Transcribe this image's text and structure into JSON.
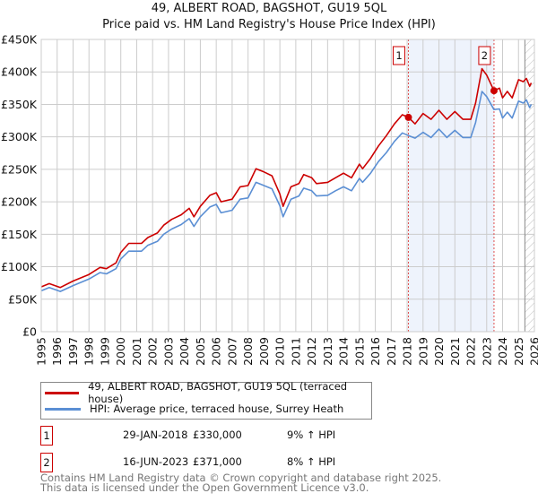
{
  "chart_data": {
    "type": "line",
    "title": "49, ALBERT ROAD, BAGSHOT, GU19 5QL",
    "subtitle": "Price paid vs. HM Land Registry's House Price Index (HPI)",
    "xlim": [
      1995,
      2026
    ],
    "ylim": [
      0,
      450000
    ],
    "y_ticks": [
      0,
      50000,
      100000,
      150000,
      200000,
      250000,
      300000,
      350000,
      400000,
      450000
    ],
    "y_tick_labels": [
      "£0",
      "£50K",
      "£100K",
      "£150K",
      "£200K",
      "£250K",
      "£300K",
      "£350K",
      "£400K",
      "£450K"
    ],
    "x_ticks": [
      1995,
      1996,
      1997,
      1998,
      1999,
      2000,
      2001,
      2002,
      2003,
      2004,
      2005,
      2006,
      2007,
      2008,
      2009,
      2010,
      2011,
      2012,
      2013,
      2014,
      2015,
      2016,
      2017,
      2018,
      2019,
      2020,
      2021,
      2022,
      2023,
      2024,
      2025,
      2026
    ],
    "grid": true,
    "forecast_hatch_from": 2025.4,
    "shaded_between_sales": [
      2018.08,
      2023.46
    ],
    "series": [
      {
        "name": "49, ALBERT ROAD, BAGSHOT, GU19 5QL (terraced house)",
        "color": "#cc0000",
        "x": [
          1995.0,
          1995.5,
          1996.2,
          1997.0,
          1998.0,
          1998.7,
          1999.1,
          1999.7,
          2000.0,
          2000.5,
          2001.3,
          2001.7,
          2002.3,
          2002.7,
          2003.2,
          2003.8,
          2004.3,
          2004.6,
          2005.0,
          2005.6,
          2006.0,
          2006.3,
          2007.0,
          2007.5,
          2008.0,
          2008.5,
          2009.0,
          2009.5,
          2010.0,
          2010.2,
          2010.7,
          2011.2,
          2011.5,
          2012.0,
          2012.3,
          2013.0,
          2013.5,
          2014.0,
          2014.5,
          2015.0,
          2015.2,
          2015.7,
          2016.2,
          2016.7,
          2017.2,
          2017.7,
          2018.08,
          2018.5,
          2019.0,
          2019.5,
          2020.0,
          2020.5,
          2021.0,
          2021.5,
          2022.0,
          2022.3,
          2022.7,
          2023.0,
          2023.46,
          2023.8,
          2024.0,
          2024.3,
          2024.6,
          2025.0,
          2025.3,
          2025.5,
          2025.7,
          2025.8
        ],
        "values": [
          69,
          74,
          68,
          78,
          88,
          99,
          97,
          106,
          122,
          136,
          136,
          145,
          152,
          164,
          173,
          180,
          190,
          177,
          193,
          210,
          214,
          200,
          204,
          223,
          225,
          251,
          246,
          240,
          212,
          193,
          223,
          228,
          242,
          237,
          228,
          230,
          237,
          244,
          237,
          258,
          251,
          267,
          286,
          302,
          320,
          334,
          330,
          320,
          336,
          327,
          341,
          327,
          339,
          327,
          327,
          352,
          405,
          395,
          371,
          375,
          360,
          370,
          360,
          388,
          385,
          390,
          378,
          383
        ]
      },
      {
        "name": "HPI: Average price, terraced house, Surrey Heath",
        "color": "#5b8fd4",
        "x": [
          1995.0,
          1995.5,
          1996.2,
          1997.0,
          1998.0,
          1998.7,
          1999.1,
          1999.7,
          2000.0,
          2000.5,
          2001.3,
          2001.7,
          2002.3,
          2002.7,
          2003.2,
          2003.8,
          2004.3,
          2004.6,
          2005.0,
          2005.6,
          2006.0,
          2006.3,
          2007.0,
          2007.5,
          2008.0,
          2008.5,
          2009.0,
          2009.5,
          2010.0,
          2010.2,
          2010.7,
          2011.2,
          2011.5,
          2012.0,
          2012.3,
          2013.0,
          2013.5,
          2014.0,
          2014.5,
          2015.0,
          2015.2,
          2015.7,
          2016.2,
          2016.7,
          2017.2,
          2017.7,
          2018.08,
          2018.5,
          2019.0,
          2019.5,
          2020.0,
          2020.5,
          2021.0,
          2021.5,
          2022.0,
          2022.3,
          2022.7,
          2023.0,
          2023.46,
          2023.8,
          2024.0,
          2024.3,
          2024.6,
          2025.0,
          2025.3,
          2025.5,
          2025.7,
          2025.8
        ],
        "values": [
          63,
          68,
          62,
          71,
          81,
          91,
          89,
          97,
          112,
          124,
          124,
          133,
          139,
          150,
          158,
          165,
          174,
          162,
          177,
          192,
          196,
          183,
          187,
          204,
          206,
          230,
          225,
          220,
          194,
          177,
          204,
          209,
          221,
          217,
          209,
          210,
          217,
          223,
          217,
          236,
          230,
          244,
          262,
          276,
          293,
          306,
          302,
          298,
          307,
          299,
          312,
          299,
          310,
          299,
          299,
          322,
          370,
          362,
          342,
          343,
          329,
          338,
          329,
          355,
          352,
          357,
          345,
          350
        ]
      }
    ],
    "sales": [
      {
        "label": "1",
        "x": 2018.08,
        "value": 330000
      },
      {
        "label": "2",
        "x": 2023.46,
        "value": 371000
      }
    ]
  },
  "legend": {
    "red_label": "49, ALBERT ROAD, BAGSHOT, GU19 5QL (terraced house)",
    "blue_label": "HPI: Average price, terraced house, Surrey Heath"
  },
  "sales_table": [
    {
      "num": "1",
      "date": "29-JAN-2018",
      "price": "£330,000",
      "hpi": "9% ↑ HPI"
    },
    {
      "num": "2",
      "date": "16-JUN-2023",
      "price": "£371,000",
      "hpi": "8% ↑ HPI"
    }
  ],
  "footer": {
    "line1": "Contains HM Land Registry data © Crown copyright and database right 2025.",
    "line2": "This data is licensed under the Open Government Licence v3.0."
  }
}
